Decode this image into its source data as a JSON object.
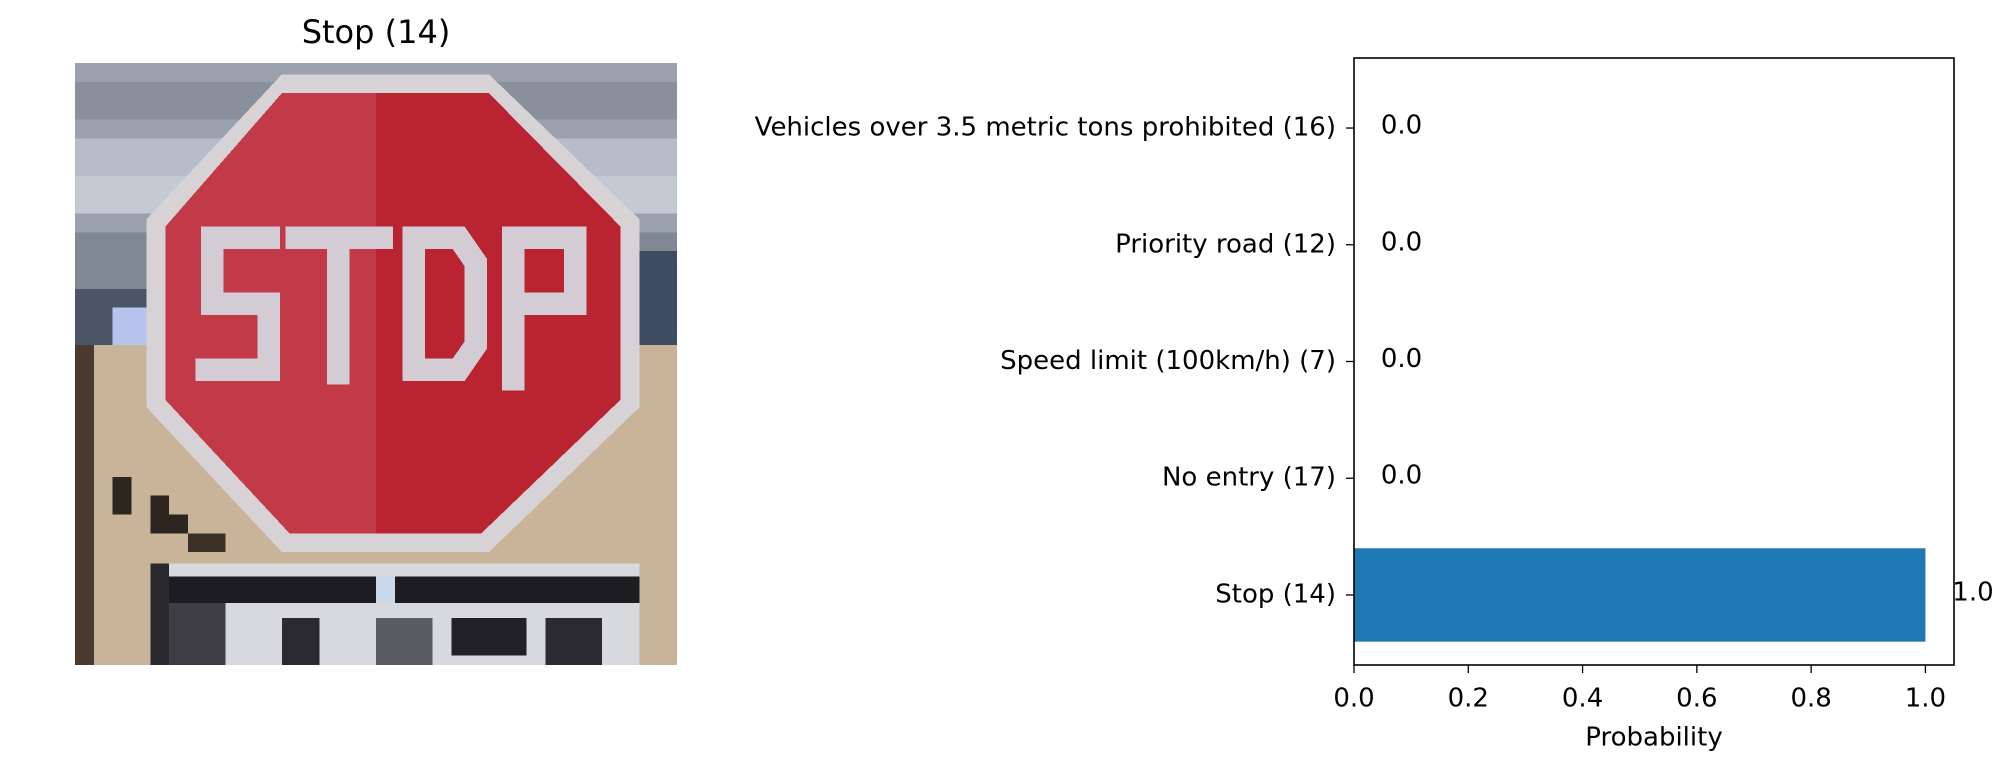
{
  "chart_data": [
    {
      "type": "image",
      "title": "Stop (14)"
    },
    {
      "type": "barh",
      "categories": [
        "Stop (14)",
        "No entry (17)",
        "Speed limit (100km/h) (7)",
        "Priority road (12)",
        "Vehicles over 3.5 metric tons prohibited (16)"
      ],
      "values": [
        1,
        0,
        0,
        0,
        0
      ],
      "value_labels": [
        "1.0",
        "0.0",
        "0.0",
        "0.0",
        "0.0"
      ],
      "color": "#1f77b4",
      "xlabel": "Probability",
      "xlim": [
        0,
        1.05
      ],
      "xticks": [
        {
          "value": 0,
          "label": "0.0"
        },
        {
          "value": 0.2,
          "label": "0.2"
        },
        {
          "value": 0.4,
          "label": "0.4"
        },
        {
          "value": 0.6,
          "label": "0.6"
        },
        {
          "value": 0.8,
          "label": "0.8"
        },
        {
          "value": 1,
          "label": "1.0"
        }
      ]
    }
  ]
}
